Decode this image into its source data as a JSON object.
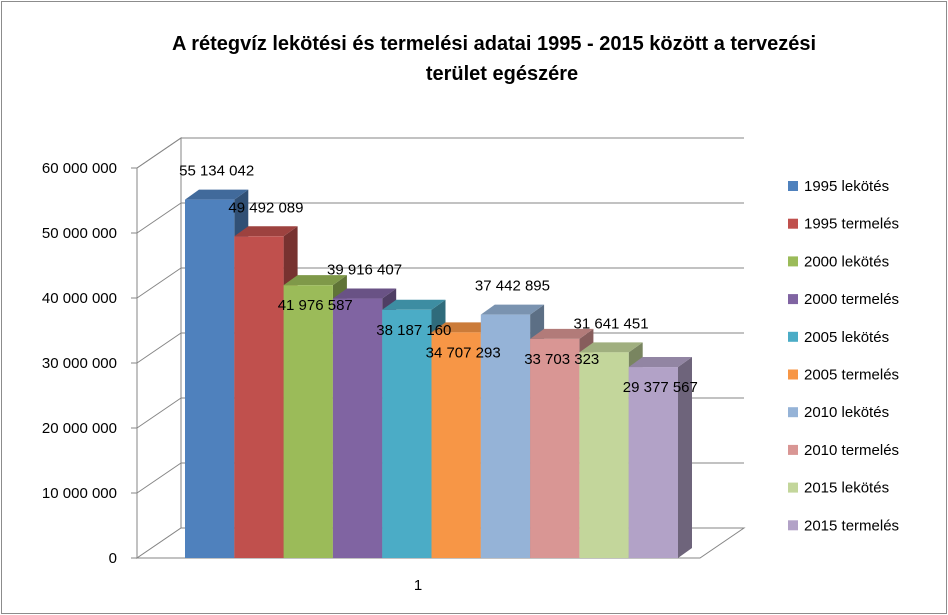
{
  "chart_data": {
    "type": "bar",
    "title_lines": [
      "A rétegvíz lekötési és termelési adatai 1995 - 2015 között a tervezési",
      "terület egészére"
    ],
    "categories": [
      "1"
    ],
    "ylim": [
      0,
      60000000
    ],
    "y_ticks": [
      0,
      10000000,
      20000000,
      30000000,
      40000000,
      50000000,
      60000000
    ],
    "y_tick_labels": [
      "0",
      "10 000 000",
      "20 000 000",
      "30 000 000",
      "40 000 000",
      "50 000 000",
      "60 000 000"
    ],
    "grid": true,
    "legend_position": "right",
    "series": [
      {
        "name": "1995 lekötés",
        "value": 55134042,
        "label": "55 134 042",
        "color": "#4F81BD"
      },
      {
        "name": "1995 termelés",
        "value": 49492089,
        "label": "49 492 089",
        "color": "#C0504D"
      },
      {
        "name": "2000 lekötés",
        "value": 41976587,
        "label": "41 976 587",
        "color": "#9BBB59"
      },
      {
        "name": "2000 termelés",
        "value": 39916407,
        "label": "39 916 407",
        "color": "#8064A2"
      },
      {
        "name": "2005 lekötés",
        "value": 38187160,
        "label": "38 187 160",
        "color": "#4BACC6"
      },
      {
        "name": "2005 termelés",
        "value": 34707293,
        "label": "34 707 293",
        "color": "#F79646"
      },
      {
        "name": "2010 lekötés",
        "value": 37442895,
        "label": "37 442 895",
        "color": "#95B3D7"
      },
      {
        "name": "2010 termelés",
        "value": 33703323,
        "label": "33 703 323",
        "color": "#D99694"
      },
      {
        "name": "2015 lekötés",
        "value": 31641451,
        "label": "31 641 451",
        "color": "#C3D69B"
      },
      {
        "name": "2015 termelés",
        "value": 29377567,
        "label": "29 377 567",
        "color": "#B2A2C7"
      }
    ]
  }
}
